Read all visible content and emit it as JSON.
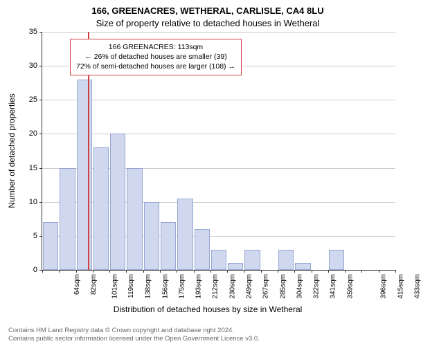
{
  "title_main": "166, GREENACRES, WETHERAL, CARLISLE, CA4 8LU",
  "title_sub": "Size of property relative to detached houses in Wetheral",
  "ylabel": "Number of detached properties",
  "xlabel": "Distribution of detached houses by size in Wetheral",
  "chart": {
    "type": "histogram",
    "ylim": [
      0,
      35
    ],
    "yticks": [
      0,
      5,
      10,
      15,
      20,
      25,
      30,
      35
    ],
    "xticklabels": [
      "64sqm",
      "82sqm",
      "101sqm",
      "119sqm",
      "138sqm",
      "156sqm",
      "175sqm",
      "193sqm",
      "212sqm",
      "230sqm",
      "249sqm",
      "267sqm",
      "285sqm",
      "304sqm",
      "322sqm",
      "341sqm",
      "359sqm",
      "",
      "396sqm",
      "415sqm",
      "433sqm"
    ],
    "values": [
      7,
      15,
      28,
      18,
      20,
      15,
      10,
      7,
      10.5,
      6,
      3,
      1,
      3,
      0,
      3,
      1,
      0,
      3,
      0,
      0,
      0
    ],
    "bar_fill": "#cfd8ef",
    "bar_border": "#98a6d4",
    "grid_color": "#cccccc",
    "axis_color": "#333333",
    "background_color": "#ffffff",
    "bar_width_ratio": 0.92,
    "marker_line_color": "#d04040",
    "marker_line_at_category_index": 2.7,
    "label_fontsize": 12,
    "tick_fontsize": 11,
    "xtick_fontsize": 10
  },
  "annotation": {
    "line1": "166 GREENACRES: 113sqm",
    "line2": "← 26% of detached houses are smaller (39)",
    "line3": "72% of semi-detached houses are larger (108) →",
    "border_color": "#d04040"
  },
  "footer": {
    "line1": "Contains HM Land Registry data © Crown copyright and database right 2024.",
    "line2": "Contains public sector information licensed under the Open Government Licence v3.0."
  }
}
